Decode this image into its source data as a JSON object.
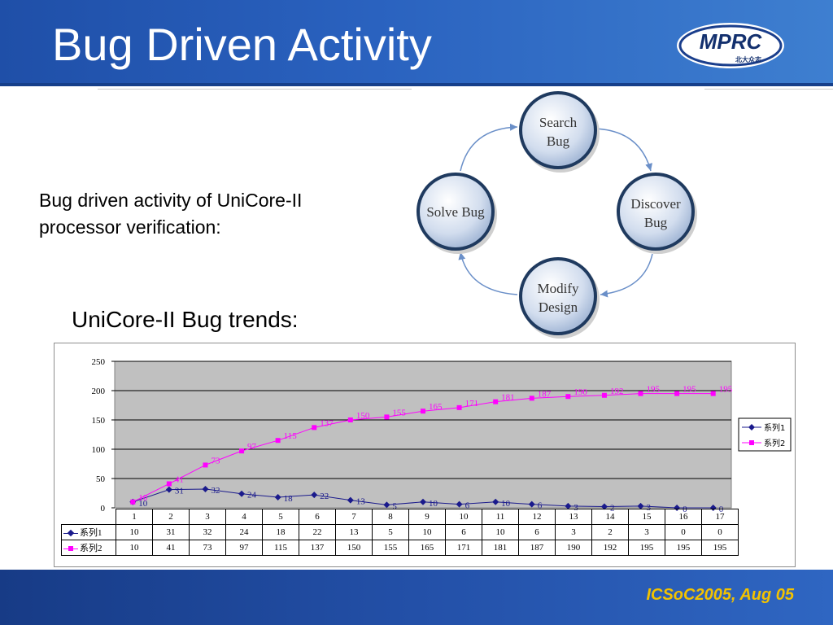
{
  "slide": {
    "title": "Bug Driven Activity",
    "description_line1": "Bug driven activity of UniCore-II",
    "description_line2": "processor verification:",
    "trends_heading": "UniCore-II Bug trends:",
    "footer": "ICSoC2005, Aug 05"
  },
  "logo": {
    "text": "MPRC",
    "subtext": "北大众志"
  },
  "cycle": {
    "nodes": [
      {
        "line1": "Search",
        "line2": "Bug"
      },
      {
        "line1": "Discover",
        "line2": "Bug"
      },
      {
        "line1": "Modify",
        "line2": "Design"
      },
      {
        "line1": "Solve Bug",
        "line2": ""
      }
    ]
  },
  "colors": {
    "header": "#2a62bf",
    "footer_text": "#f2c200",
    "series1": "#1a1a8c",
    "series2": "#ff00ff",
    "plot_bg": "#c0c0c0"
  },
  "chart_data": {
    "type": "line",
    "categories": [
      "1",
      "2",
      "3",
      "4",
      "5",
      "6",
      "7",
      "8",
      "9",
      "10",
      "11",
      "12",
      "13",
      "14",
      "15",
      "16",
      "17"
    ],
    "series": [
      {
        "name": "系列1",
        "values": [
          10,
          31,
          32,
          24,
          18,
          22,
          13,
          5,
          10,
          6,
          10,
          6,
          3,
          2,
          3,
          0,
          0
        ]
      },
      {
        "name": "系列2",
        "values": [
          10,
          41,
          73,
          97,
          115,
          137,
          150,
          155,
          165,
          171,
          181,
          187,
          190,
          192,
          195,
          195,
          195
        ]
      }
    ],
    "ylim": [
      0,
      250
    ],
    "yticks": [
      "0",
      "50",
      "100",
      "150",
      "200",
      "250"
    ],
    "grid": true,
    "legend": "right",
    "data_table": true
  }
}
